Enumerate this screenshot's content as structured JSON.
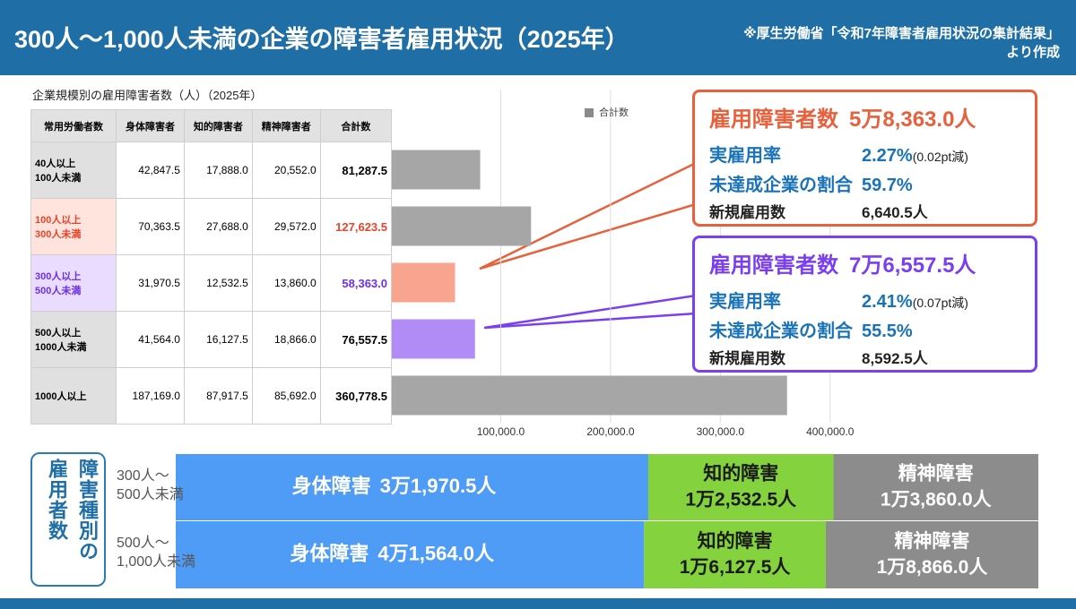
{
  "header": {
    "title": "300人〜1,000人未満の企業の障害者雇用状況（2025年）",
    "source": "※厚生労働省「令和7年障害者雇用状況の集計結果」\nより作成"
  },
  "table": {
    "caption": "企業規模別の雇用障害者数（人）（2025年）",
    "columns": [
      "常用労働者数",
      "身体障害者",
      "知的障害者",
      "精神障害者",
      "合計数"
    ],
    "rows": [
      [
        "40人以上\n100人未満",
        "42,847.5",
        "17,888.0",
        "20,552.0",
        "81,287.5"
      ],
      [
        "100人以上\n300人未満",
        "70,363.5",
        "27,688.0",
        "29,572.0",
        "127,623.5"
      ],
      [
        "300人以上\n500人未満",
        "31,970.5",
        "12,532.5",
        "13,860.0",
        "58,363.0"
      ],
      [
        "500人以上\n1000人未満",
        "41,564.0",
        "16,127.5",
        "18,866.0",
        "76,557.5"
      ],
      [
        "1000人以上",
        "187,169.0",
        "87,917.5",
        "85,692.0",
        "360,778.5"
      ]
    ]
  },
  "callouts": [
    {
      "title": "雇用障害者数",
      "value": "5万8,363.0人",
      "color": "#e8603c",
      "rows": [
        {
          "label": "実雇用率",
          "value": "2.27%",
          "note": "(0.02pt減)"
        },
        {
          "label": "未達成企業の割合",
          "value": "59.7%"
        },
        {
          "label": "新規雇用数",
          "value": "6,640.5人"
        }
      ]
    },
    {
      "title": "雇用障害者数",
      "value": "7万6,557.5人",
      "color": "#7a3ff0",
      "rows": [
        {
          "label": "実雇用率",
          "value": "2.41%",
          "note": "(0.07pt減)"
        },
        {
          "label": "未達成企業の割合",
          "value": "55.5%"
        },
        {
          "label": "新規雇用数",
          "value": "8,592.5人"
        }
      ]
    }
  ],
  "chart_data": [
    {
      "type": "bar",
      "orientation": "horizontal",
      "legend": "top",
      "series": [
        {
          "name": "合計数",
          "color": "#8a8a8a",
          "values": [
            81287.5,
            127623.5,
            58363.0,
            76557.5,
            360778.5
          ],
          "colors": [
            "#a6a6a6",
            "#a6a6a6",
            "#f9a48e",
            "#b28cf6",
            "#a6a6a6"
          ]
        }
      ],
      "xlim": [
        0,
        450000
      ],
      "xticks": [
        {
          "value": 100000,
          "label": "100,000.0"
        },
        {
          "value": 200000,
          "label": "200,000.0"
        },
        {
          "value": 300000,
          "label": "300,000.0"
        },
        {
          "value": 400000,
          "label": "400,000.0"
        }
      ],
      "grid": true
    },
    {
      "type": "stacked_bar",
      "orientation": "horizontal",
      "normalized": true,
      "title_lines": [
        "障害種別の",
        "雇用者数"
      ],
      "categories": [
        "300人〜\n500人未満",
        "500人〜\n1,000人未満"
      ],
      "series": [
        {
          "name": "身体障害",
          "color": "#4f9cf7",
          "values": [
            31970.5,
            41564.0
          ],
          "value_labels": [
            "3万1,970.5人",
            "4万1,564.0人"
          ]
        },
        {
          "name": "知的障害",
          "color": "#84d23e",
          "values": [
            12532.5,
            16127.5
          ],
          "value_labels": [
            "1万2,532.5人",
            "1万6,127.5人"
          ]
        },
        {
          "name": "精神障害",
          "color": "#8c8c8c",
          "values": [
            13860.0,
            18866.0
          ],
          "value_labels": [
            "1万3,860.0人",
            "1万8,866.0人"
          ]
        }
      ]
    }
  ]
}
